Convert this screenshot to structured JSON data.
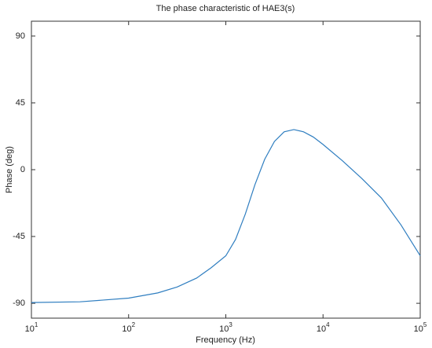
{
  "chart_data": {
    "type": "line",
    "title": "The phase characteristic of HAE3(s)",
    "xlabel": "Frequency  (Hz)",
    "ylabel": "Phase (deg)",
    "xscale": "log",
    "x": [
      10,
      31.6,
      100,
      199.5,
      316.2,
      501.2,
      707.9,
      1000,
      1258.9,
      1584.9,
      1995.3,
      2511.9,
      3162.3,
      3981.1,
      5011.9,
      6309.6,
      7943.3,
      10000,
      15848.9,
      25118.9,
      39810.7,
      63095.7,
      100000
    ],
    "series": [
      {
        "color": "#2f7ec0",
        "values": [
          -89.5,
          -89,
          -86.5,
          -83,
          -79,
          -73,
          -66,
          -58,
          -47,
          -30,
          -10,
          7,
          19,
          25.5,
          27,
          25.5,
          22,
          17,
          6,
          -6,
          -19,
          -37,
          -58
        ]
      }
    ],
    "xlim": [
      10,
      100000
    ],
    "xticks": [
      {
        "value": 10,
        "label": "10^1"
      },
      {
        "value": 100,
        "label": "10^2"
      },
      {
        "value": 1000,
        "label": "10^3"
      },
      {
        "value": 10000,
        "label": "10^4"
      },
      {
        "value": 100000,
        "label": "10^5"
      }
    ],
    "ylim": [
      -100,
      100
    ],
    "yticks": [
      -90,
      -45,
      0,
      45,
      90
    ]
  }
}
